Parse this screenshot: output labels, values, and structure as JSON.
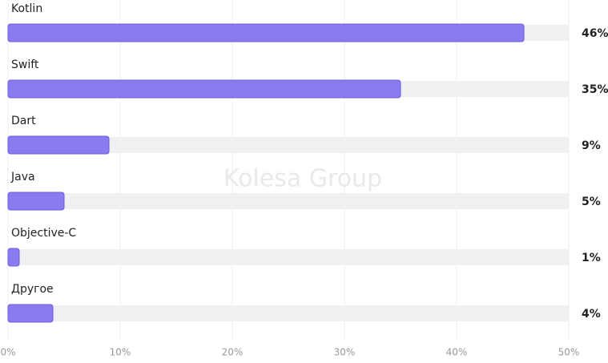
{
  "chart_data": {
    "type": "bar",
    "orientation": "horizontal",
    "categories": [
      "Kotlin",
      "Swift",
      "Dart",
      "Java",
      "Objective-C",
      "Другое"
    ],
    "values": [
      46,
      35,
      9,
      5,
      1,
      4
    ],
    "value_labels": [
      "46%",
      "35%",
      "9%",
      "5%",
      "1%",
      "4%"
    ],
    "color": "#8a7cf0",
    "xlim": [
      0,
      50
    ],
    "xticks": [
      {
        "value": 0,
        "label": "0%"
      },
      {
        "value": 10,
        "label": "10%"
      },
      {
        "value": 20,
        "label": "20%"
      },
      {
        "value": 30,
        "label": "30%"
      },
      {
        "value": 40,
        "label": "40%"
      },
      {
        "value": 50,
        "label": "50%"
      }
    ],
    "grid": true,
    "watermark": "Kolesa Group"
  }
}
